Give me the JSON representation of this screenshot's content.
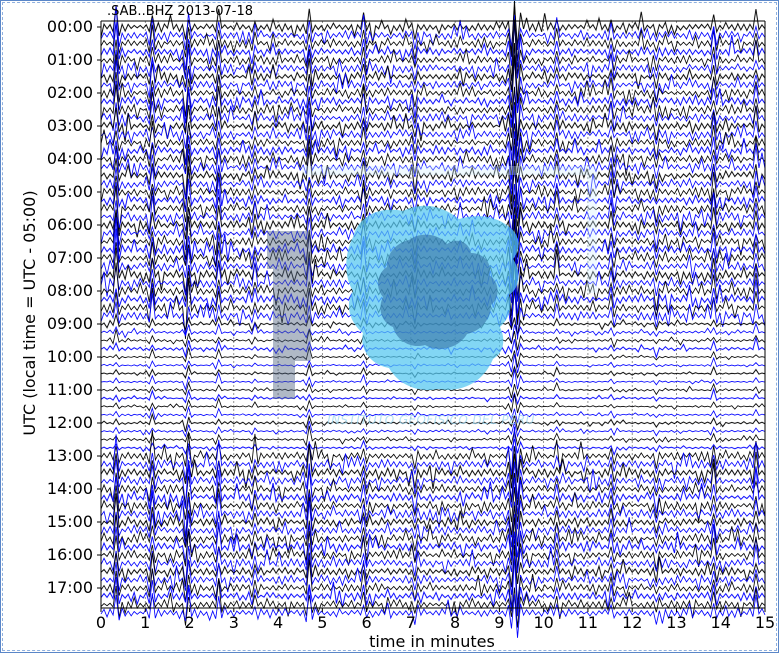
{
  "window": {
    "title": ".SAB..BHZ 2013-07-18"
  },
  "chart_data": {
    "type": "line",
    "title": ".SAB..BHZ 2013-07-18",
    "xlabel": "time in minutes",
    "ylabel": "UTC (local time = UTC - 05:00)",
    "x_ticks": [
      0,
      1,
      2,
      3,
      4,
      5,
      6,
      7,
      8,
      9,
      10,
      11,
      12,
      13,
      14,
      15
    ],
    "y_ticks": [
      "00:00",
      "01:00",
      "02:00",
      "03:00",
      "04:00",
      "05:00",
      "06:00",
      "07:00",
      "08:00",
      "09:00",
      "10:00",
      "11:00",
      "12:00",
      "13:00",
      "14:00",
      "15:00",
      "16:00",
      "17:00"
    ],
    "xlim": [
      0,
      15
    ],
    "trace_interval_minutes": 15,
    "trace_colors": [
      "#000000",
      "#0000ff"
    ],
    "hours_shown": 18,
    "watermark_text": "INSTITUTO GEOFISICO DEL PERU",
    "legend": "none"
  },
  "colors": {
    "frame_border": "#5a86c8",
    "trace_black": "#000000",
    "trace_blue": "#0000ff",
    "watermark": "#67c7ef"
  }
}
